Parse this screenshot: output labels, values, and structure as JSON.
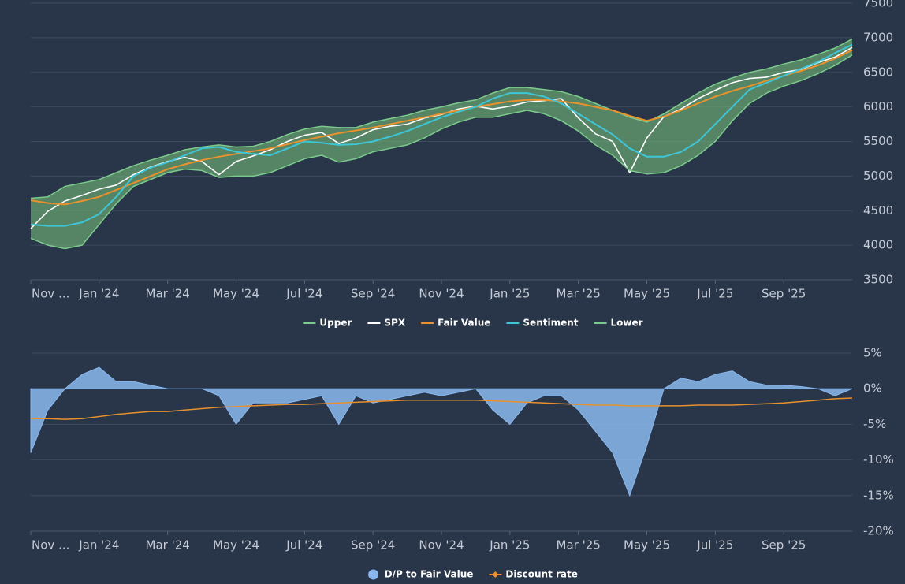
{
  "chart_data": [
    {
      "type": "line",
      "x": [
        0,
        0.5,
        1,
        1.5,
        2,
        2.5,
        3,
        3.5,
        4,
        4.5,
        5,
        5.5,
        6,
        6.5,
        7,
        7.5,
        8,
        8.5,
        9,
        9.5,
        10,
        10.5,
        11,
        11.5,
        12,
        12.5,
        13,
        13.5,
        14,
        14.5,
        15,
        15.5,
        16,
        16.5,
        17,
        17.5,
        18,
        18.5,
        19,
        19.5,
        20,
        20.5,
        21,
        21.5,
        22,
        22.5,
        23,
        23.5,
        24
      ],
      "xlim": [
        0,
        24
      ],
      "xticks": [
        {
          "value": 0,
          "label": "Nov ..."
        },
        {
          "value": 2,
          "label": "Jan '24"
        },
        {
          "value": 4,
          "label": "Mar '24"
        },
        {
          "value": 6,
          "label": "May '24"
        },
        {
          "value": 8,
          "label": "Jul '24"
        },
        {
          "value": 10,
          "label": "Sep '24"
        },
        {
          "value": 12,
          "label": "Nov '24"
        },
        {
          "value": 14,
          "label": "Jan '25"
        },
        {
          "value": 16,
          "label": "Mar '25"
        },
        {
          "value": 18,
          "label": "May '25"
        },
        {
          "value": 20,
          "label": "Jul '25"
        },
        {
          "value": 22,
          "label": "Sep '25"
        }
      ],
      "ylim": [
        3500,
        7500
      ],
      "yticks": [
        3500,
        4000,
        4500,
        5000,
        5500,
        6000,
        6500,
        7000,
        7500
      ],
      "grid": true,
      "band_fill": "#6aa872",
      "series": [
        {
          "name": "Upper",
          "color": "#7ccb8c",
          "width": 1.5,
          "legend_marker": "line",
          "values": [
            4680,
            4700,
            4850,
            4900,
            4950,
            5050,
            5150,
            5230,
            5300,
            5380,
            5420,
            5450,
            5420,
            5430,
            5500,
            5600,
            5680,
            5720,
            5700,
            5700,
            5780,
            5830,
            5880,
            5950,
            6000,
            6060,
            6100,
            6200,
            6280,
            6280,
            6250,
            6220,
            6150,
            6050,
            5950,
            5850,
            5780,
            5900,
            6050,
            6200,
            6330,
            6420,
            6500,
            6550,
            6620,
            6680,
            6760,
            6850,
            6980
          ]
        },
        {
          "name": "SPX",
          "color": "#ffffff",
          "width": 1.6,
          "legend_marker": "line",
          "values": [
            4240,
            4490,
            4640,
            4720,
            4810,
            4870,
            5020,
            5130,
            5210,
            5270,
            5210,
            5020,
            5210,
            5290,
            5380,
            5500,
            5590,
            5630,
            5470,
            5550,
            5670,
            5720,
            5750,
            5840,
            5890,
            5970,
            6010,
            5970,
            6010,
            6070,
            6090,
            6120,
            5840,
            5610,
            5500,
            5050,
            5550,
            5860,
            5970,
            6120,
            6240,
            6350,
            6410,
            6430,
            6500,
            6540,
            6640,
            6720,
            6860
          ]
        },
        {
          "name": "Fair Value",
          "color": "#e8912d",
          "width": 2,
          "legend_marker": "line",
          "values": [
            4650,
            4610,
            4590,
            4640,
            4700,
            4800,
            4900,
            5000,
            5100,
            5170,
            5230,
            5280,
            5320,
            5360,
            5400,
            5460,
            5520,
            5570,
            5620,
            5660,
            5700,
            5750,
            5800,
            5850,
            5900,
            5950,
            6000,
            6040,
            6080,
            6100,
            6100,
            6080,
            6050,
            6000,
            5950,
            5870,
            5800,
            5860,
            5950,
            6050,
            6150,
            6230,
            6300,
            6380,
            6450,
            6520,
            6600,
            6700,
            6820
          ]
        },
        {
          "name": "Sentiment",
          "color": "#3ec5d8",
          "width": 2,
          "legend_marker": "line",
          "values": [
            4300,
            4280,
            4280,
            4330,
            4450,
            4700,
            5000,
            5120,
            5200,
            5300,
            5400,
            5420,
            5350,
            5320,
            5300,
            5400,
            5500,
            5480,
            5450,
            5460,
            5500,
            5570,
            5650,
            5750,
            5850,
            5930,
            6000,
            6120,
            6200,
            6200,
            6150,
            6050,
            5900,
            5750,
            5600,
            5400,
            5280,
            5280,
            5350,
            5500,
            5750,
            6000,
            6250,
            6350,
            6450,
            6550,
            6650,
            6780,
            6900
          ]
        },
        {
          "name": "Lower",
          "color": "#7ccb8c",
          "width": 1.5,
          "legend_marker": "line",
          "values": [
            4100,
            4000,
            3950,
            4000,
            4300,
            4600,
            4850,
            4950,
            5050,
            5100,
            5080,
            4980,
            5000,
            5000,
            5050,
            5150,
            5250,
            5300,
            5200,
            5250,
            5350,
            5400,
            5450,
            5550,
            5680,
            5780,
            5850,
            5850,
            5900,
            5950,
            5900,
            5800,
            5650,
            5450,
            5300,
            5080,
            5030,
            5050,
            5150,
            5300,
            5500,
            5800,
            6050,
            6200,
            6300,
            6380,
            6480,
            6600,
            6750
          ]
        }
      ]
    },
    {
      "type": "area",
      "x": [
        0,
        0.5,
        1,
        1.5,
        2,
        2.5,
        3,
        3.5,
        4,
        4.5,
        5,
        5.5,
        6,
        6.5,
        7,
        7.5,
        8,
        8.5,
        9,
        9.5,
        10,
        10.5,
        11,
        11.5,
        12,
        12.5,
        13,
        13.5,
        14,
        14.5,
        15,
        15.5,
        16,
        16.5,
        17,
        17.5,
        18,
        18.5,
        19,
        19.5,
        20,
        20.5,
        21,
        21.5,
        22,
        22.5,
        23,
        23.5,
        24
      ],
      "xlim": [
        0,
        24
      ],
      "xticks": [
        {
          "value": 0,
          "label": "Nov ..."
        },
        {
          "value": 2,
          "label": "Jan '24"
        },
        {
          "value": 4,
          "label": "Mar '24"
        },
        {
          "value": 6,
          "label": "May '24"
        },
        {
          "value": 8,
          "label": "Jul '24"
        },
        {
          "value": 10,
          "label": "Sep '24"
        },
        {
          "value": 12,
          "label": "Nov '24"
        },
        {
          "value": 14,
          "label": "Jan '25"
        },
        {
          "value": 16,
          "label": "Mar '25"
        },
        {
          "value": 18,
          "label": "May '25"
        },
        {
          "value": 20,
          "label": "Jul '25"
        },
        {
          "value": 22,
          "label": "Sep '25"
        }
      ],
      "ylim": [
        -20,
        5
      ],
      "yticks": [
        {
          "value": -20,
          "label": "-20%"
        },
        {
          "value": -15,
          "label": "-15%"
        },
        {
          "value": -10,
          "label": "-10%"
        },
        {
          "value": -5,
          "label": "-5%"
        },
        {
          "value": 0,
          "label": "0%"
        },
        {
          "value": 5,
          "label": "5%"
        }
      ],
      "grid": true,
      "series": [
        {
          "name": "D/P to Fair Value",
          "color": "#8ab8ee",
          "type": "area",
          "legend_marker": "circle",
          "values": [
            -9,
            -3,
            0,
            2,
            3,
            1,
            1,
            0.5,
            0,
            0,
            0,
            -1,
            -5,
            -2,
            -2,
            -2,
            -1.5,
            -1,
            -5,
            -1,
            -2,
            -1.5,
            -1,
            -0.5,
            -1,
            -0.5,
            0,
            -3,
            -5,
            -2,
            -1,
            -1,
            -3,
            -6,
            -9,
            -15,
            -8,
            0,
            1.5,
            1,
            2,
            2.5,
            1,
            0.5,
            0.5,
            0.3,
            0,
            -1,
            0
          ]
        },
        {
          "name": "Discount rate",
          "color": "#e8912d",
          "type": "line",
          "legend_marker": "line-diamond",
          "values": [
            -4.2,
            -4.2,
            -4.3,
            -4.2,
            -3.9,
            -3.6,
            -3.4,
            -3.2,
            -3.2,
            -3.0,
            -2.8,
            -2.6,
            -2.5,
            -2.4,
            -2.3,
            -2.2,
            -2.2,
            -2.1,
            -2.0,
            -1.9,
            -1.8,
            -1.7,
            -1.6,
            -1.6,
            -1.6,
            -1.6,
            -1.6,
            -1.7,
            -1.8,
            -1.9,
            -2.0,
            -2.1,
            -2.2,
            -2.3,
            -2.3,
            -2.4,
            -2.4,
            -2.4,
            -2.4,
            -2.3,
            -2.3,
            -2.3,
            -2.2,
            -2.1,
            -2.0,
            -1.8,
            -1.6,
            -1.4,
            -1.3
          ]
        }
      ]
    }
  ]
}
